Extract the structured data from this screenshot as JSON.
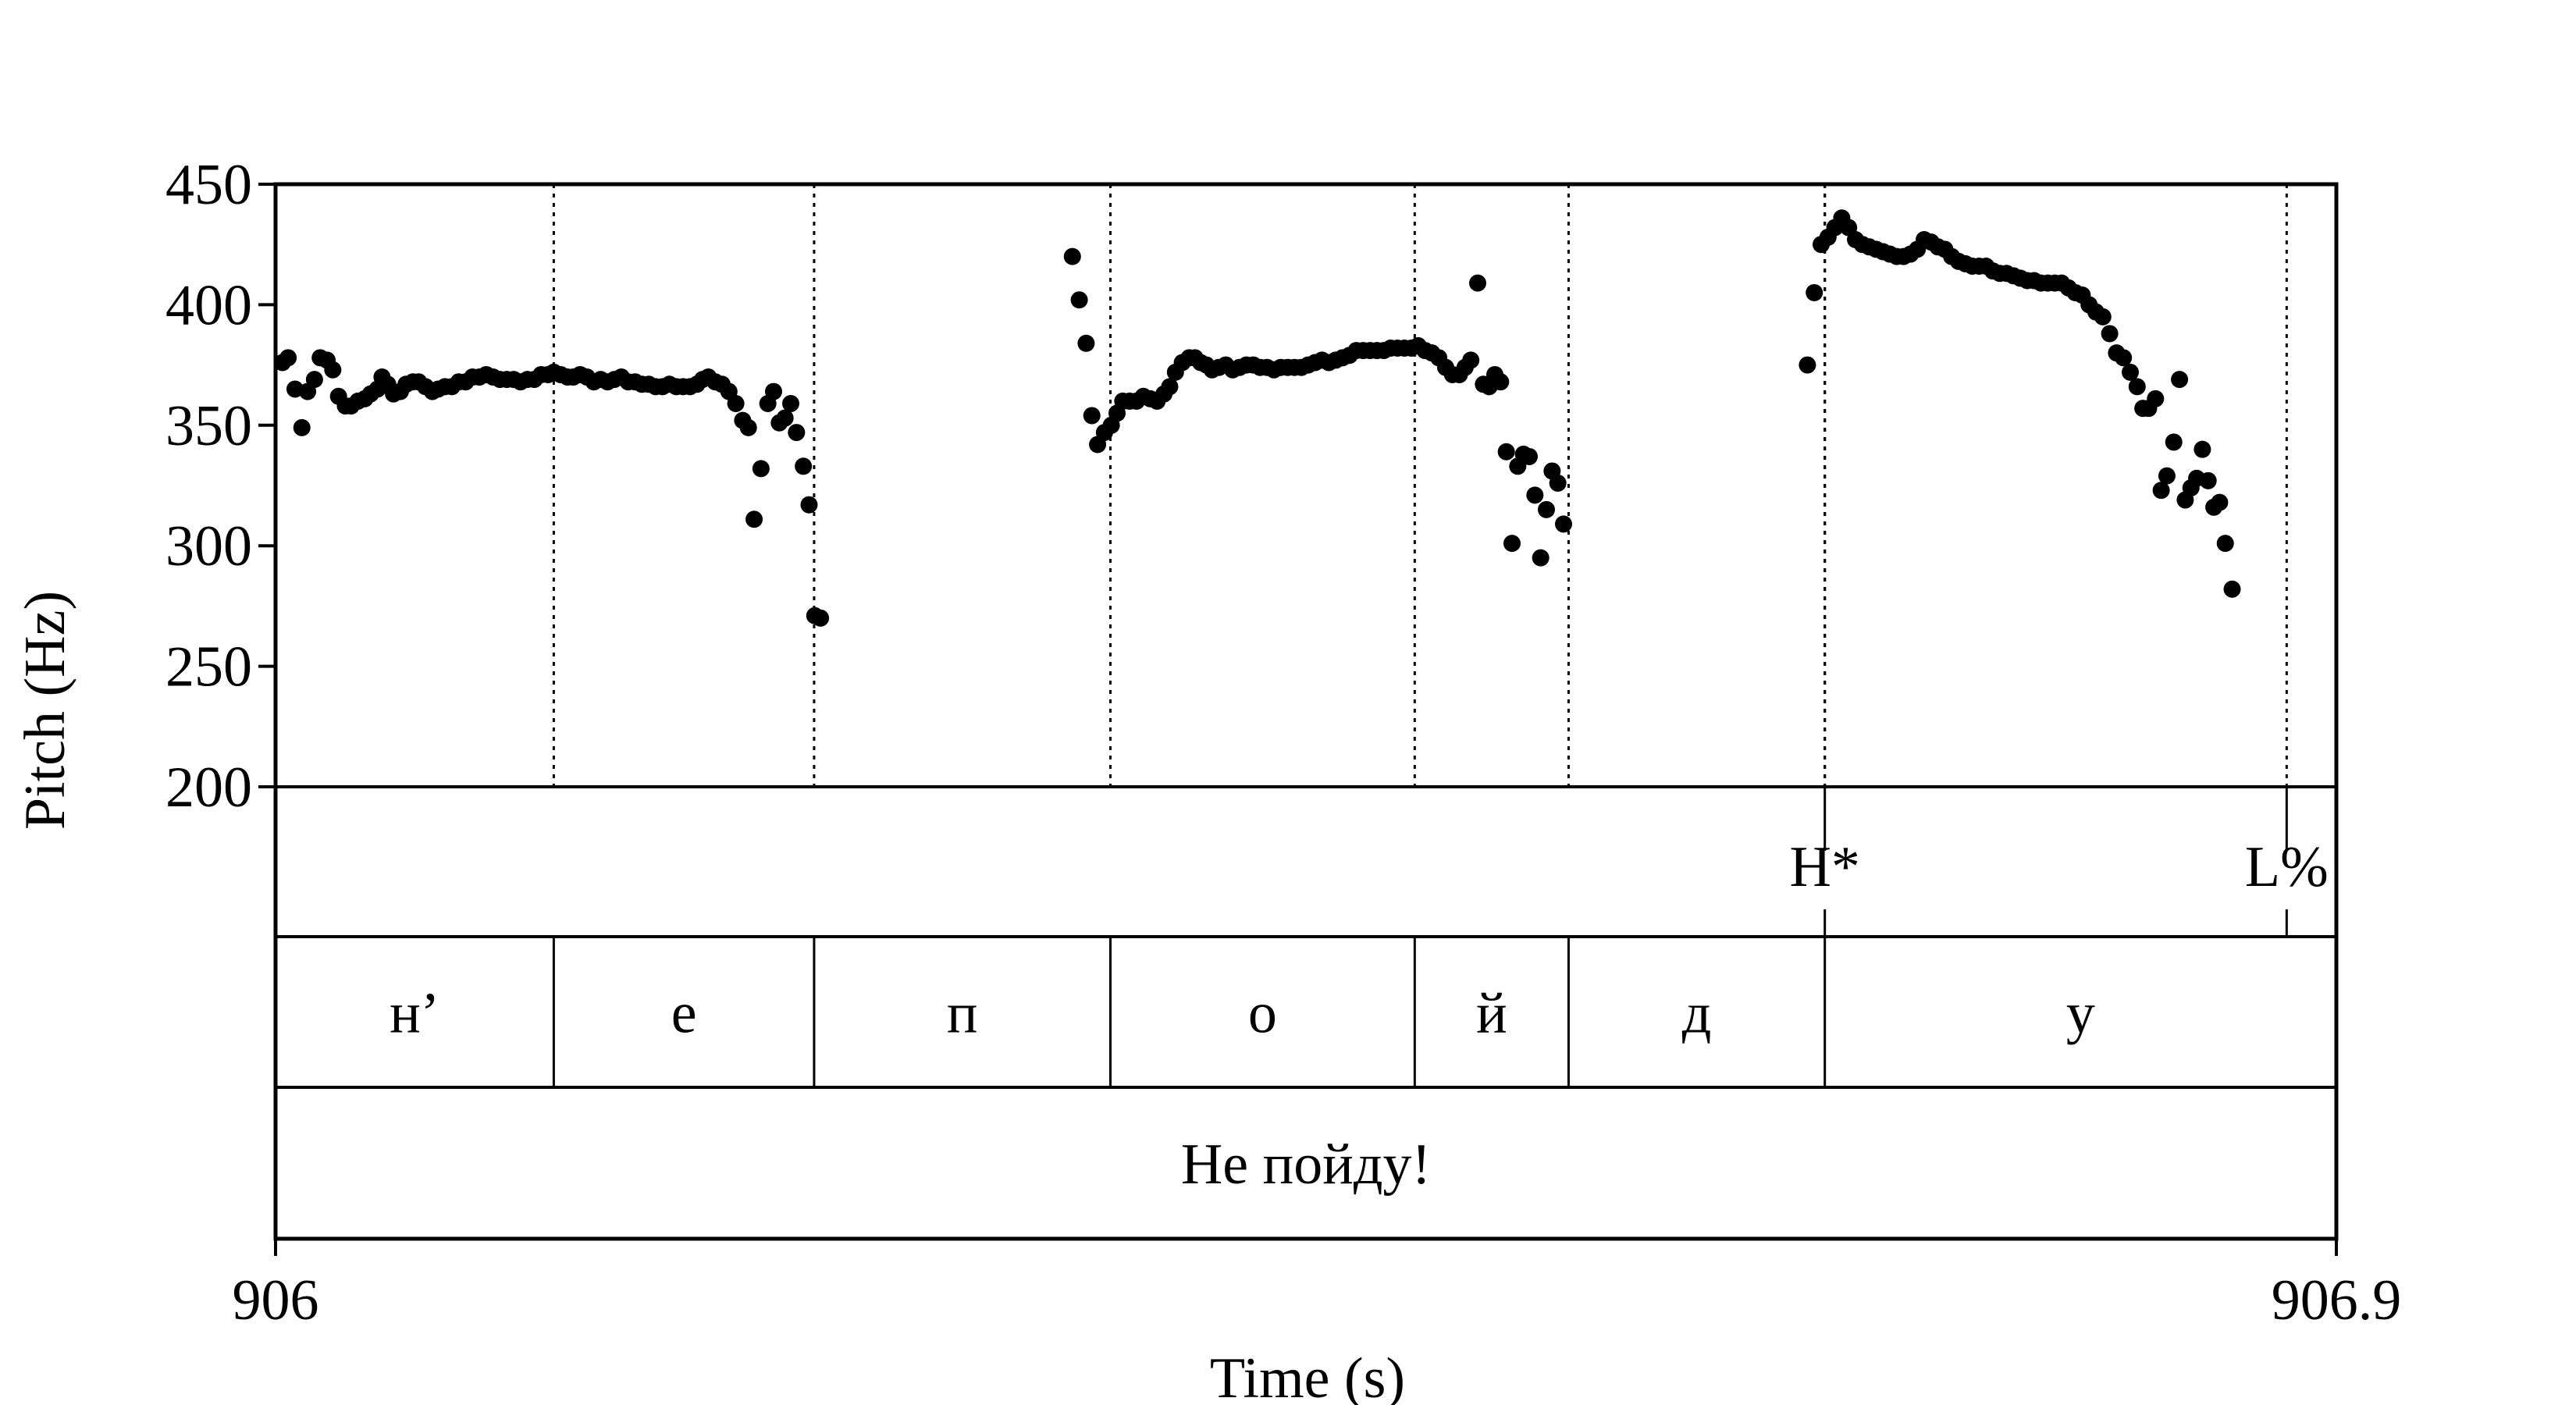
{
  "chart_data": {
    "type": "scatter",
    "xlabel": "Time (s)",
    "ylabel": "Pitch (Hz)",
    "xlim": [
      906,
      906.9
    ],
    "ylim": [
      200,
      450
    ],
    "x_tick_labels": [
      "906",
      "906.9"
    ],
    "y_ticks": [
      450,
      400,
      350,
      300,
      250,
      200
    ],
    "y_tick_labels": [
      "450",
      "400",
      "350",
      "300",
      "250",
      "200"
    ],
    "segment_boundaries": [
      906.1215,
      906.2352,
      906.3646,
      906.4975,
      906.5647,
      906.6766
    ],
    "tones": [
      {
        "time": 906.6766,
        "label": "H*"
      },
      {
        "time": 906.8783,
        "label": "L%"
      }
    ],
    "segments": [
      {
        "start": 906.0,
        "end": 906.1215,
        "label": "н’"
      },
      {
        "start": 906.1215,
        "end": 906.2352,
        "label": "е"
      },
      {
        "start": 906.2352,
        "end": 906.3646,
        "label": "п"
      },
      {
        "start": 906.3646,
        "end": 906.4975,
        "label": "о"
      },
      {
        "start": 906.4975,
        "end": 906.5647,
        "label": "й"
      },
      {
        "start": 906.5647,
        "end": 906.6766,
        "label": "д"
      },
      {
        "start": 906.6766,
        "end": 906.9,
        "label": "у"
      }
    ],
    "utterance": {
      "start": 906.0,
      "end": 906.9,
      "label": "Не пойду!"
    },
    "series": [
      {
        "points": [
          [
            906.003,
            376
          ],
          [
            906.0055,
            378
          ],
          [
            906.0085,
            365
          ],
          [
            906.0115,
            349
          ],
          [
            906.014,
            364
          ],
          [
            906.017,
            369
          ],
          [
            906.0195,
            378
          ],
          [
            906.0225,
            377
          ],
          [
            906.025,
            373
          ],
          [
            906.0275,
            362
          ],
          [
            906.0305,
            358
          ],
          [
            906.033,
            358
          ],
          [
            906.036,
            360
          ],
          [
            906.039,
            361
          ],
          [
            906.0415,
            363
          ],
          [
            906.0445,
            365
          ],
          [
            906.0465,
            370
          ],
          [
            906.049,
            367
          ],
          [
            906.0515,
            363
          ],
          [
            906.0545,
            364
          ],
          [
            906.057,
            367
          ],
          [
            906.06,
            368
          ],
          [
            906.0625,
            368
          ],
          [
            906.0655,
            366
          ],
          [
            906.0685,
            364
          ],
          [
            906.071,
            365
          ],
          [
            906.074,
            366
          ],
          [
            906.077,
            366
          ],
          [
            906.08,
            368
          ],
          [
            906.083,
            368
          ],
          [
            906.086,
            370
          ],
          [
            906.089,
            370
          ],
          [
            906.092,
            371
          ],
          [
            906.095,
            370
          ],
          [
            906.098,
            369
          ],
          [
            906.101,
            369
          ],
          [
            906.104,
            369
          ],
          [
            906.107,
            368
          ],
          [
            906.11,
            369
          ],
          [
            906.113,
            369
          ],
          [
            906.116,
            371
          ],
          [
            906.119,
            371
          ],
          [
            906.1215,
            372
          ],
          [
            906.1245,
            371
          ],
          [
            906.1275,
            370
          ],
          [
            906.13,
            370
          ],
          [
            906.133,
            371
          ],
          [
            906.136,
            370
          ],
          [
            906.139,
            368
          ],
          [
            906.142,
            369
          ],
          [
            906.145,
            368
          ],
          [
            906.148,
            369
          ],
          [
            906.151,
            370
          ],
          [
            906.154,
            368
          ],
          [
            906.157,
            368
          ],
          [
            906.16,
            367
          ],
          [
            906.163,
            367
          ],
          [
            906.166,
            366
          ],
          [
            906.169,
            366
          ],
          [
            906.172,
            367
          ],
          [
            906.175,
            366
          ],
          [
            906.178,
            366
          ],
          [
            906.181,
            366
          ],
          [
            906.184,
            367
          ],
          [
            906.1865,
            369
          ],
          [
            906.189,
            370
          ],
          [
            906.192,
            368
          ],
          [
            906.195,
            367
          ],
          [
            906.198,
            364
          ],
          [
            906.201,
            359
          ],
          [
            906.204,
            352
          ],
          [
            906.2065,
            349
          ],
          [
            906.209,
            311
          ],
          [
            906.212,
            332
          ],
          [
            906.215,
            359
          ],
          [
            906.2175,
            364
          ],
          [
            906.22,
            351
          ],
          [
            906.2225,
            353
          ],
          [
            906.225,
            359
          ],
          [
            906.2275,
            347
          ],
          [
            906.2305,
            333
          ],
          [
            906.233,
            317
          ],
          [
            906.2355,
            271
          ],
          [
            906.238,
            270
          ],
          [
            906.348,
            420
          ],
          [
            906.351,
            402
          ],
          [
            906.354,
            384
          ],
          [
            906.3565,
            354
          ],
          [
            906.359,
            342
          ],
          [
            906.362,
            347
          ],
          [
            906.365,
            350
          ],
          [
            906.3675,
            355
          ],
          [
            906.37,
            360
          ],
          [
            906.373,
            360
          ],
          [
            906.376,
            360
          ],
          [
            906.379,
            362
          ],
          [
            906.382,
            361
          ],
          [
            906.385,
            360
          ],
          [
            906.388,
            363
          ],
          [
            906.3905,
            366
          ],
          [
            906.393,
            372
          ],
          [
            906.396,
            376
          ],
          [
            906.399,
            378
          ],
          [
            906.4015,
            378
          ],
          [
            906.404,
            376
          ],
          [
            906.4065,
            375
          ],
          [
            906.409,
            373
          ],
          [
            906.412,
            374
          ],
          [
            906.415,
            375
          ],
          [
            906.418,
            373
          ],
          [
            906.421,
            374
          ],
          [
            906.424,
            375
          ],
          [
            906.427,
            375
          ],
          [
            906.43,
            374
          ],
          [
            906.433,
            374
          ],
          [
            906.436,
            373
          ],
          [
            906.439,
            374
          ],
          [
            906.442,
            374
          ],
          [
            906.445,
            374
          ],
          [
            906.448,
            374
          ],
          [
            906.451,
            375
          ],
          [
            906.454,
            376
          ],
          [
            906.457,
            377
          ],
          [
            906.46,
            376
          ],
          [
            906.463,
            377
          ],
          [
            906.466,
            378
          ],
          [
            906.469,
            379
          ],
          [
            906.472,
            381
          ],
          [
            906.475,
            381
          ],
          [
            906.478,
            381
          ],
          [
            906.481,
            381
          ],
          [
            906.484,
            381
          ],
          [
            906.487,
            382
          ],
          [
            906.49,
            382
          ],
          [
            906.493,
            382
          ],
          [
            906.496,
            382
          ],
          [
            906.499,
            383
          ],
          [
            906.502,
            381
          ],
          [
            906.505,
            380
          ],
          [
            906.508,
            378
          ],
          [
            906.511,
            374
          ],
          [
            906.514,
            371
          ],
          [
            906.517,
            371
          ],
          [
            906.5195,
            374
          ],
          [
            906.522,
            377
          ],
          [
            906.525,
            409
          ],
          [
            906.5275,
            367
          ],
          [
            906.53,
            366
          ],
          [
            906.5325,
            371
          ],
          [
            906.535,
            368
          ],
          [
            906.5375,
            339
          ],
          [
            906.54,
            301
          ],
          [
            906.5425,
            333
          ],
          [
            906.545,
            338
          ],
          [
            906.5475,
            337
          ],
          [
            906.55,
            321
          ],
          [
            906.5525,
            295
          ],
          [
            906.555,
            315
          ],
          [
            906.5575,
            331
          ],
          [
            906.56,
            326
          ],
          [
            906.5625,
            309
          ],
          [
            906.669,
            375
          ],
          [
            906.672,
            405
          ],
          [
            906.675,
            425
          ],
          [
            906.678,
            428
          ],
          [
            906.681,
            432
          ],
          [
            906.684,
            436
          ],
          [
            906.687,
            432
          ],
          [
            906.69,
            427
          ],
          [
            906.693,
            425
          ],
          [
            906.696,
            424
          ],
          [
            906.699,
            423
          ],
          [
            906.702,
            422
          ],
          [
            906.705,
            421
          ],
          [
            906.708,
            420
          ],
          [
            906.711,
            420
          ],
          [
            906.714,
            421
          ],
          [
            906.717,
            423
          ],
          [
            906.72,
            427
          ],
          [
            906.723,
            426
          ],
          [
            906.726,
            424
          ],
          [
            906.729,
            423
          ],
          [
            906.732,
            420
          ],
          [
            906.735,
            418
          ],
          [
            906.738,
            417
          ],
          [
            906.741,
            416
          ],
          [
            906.744,
            416
          ],
          [
            906.747,
            416
          ],
          [
            906.75,
            414
          ],
          [
            906.753,
            413
          ],
          [
            906.756,
            413
          ],
          [
            906.759,
            412
          ],
          [
            906.762,
            411
          ],
          [
            906.765,
            410
          ],
          [
            906.768,
            410
          ],
          [
            906.771,
            409
          ],
          [
            906.774,
            409
          ],
          [
            906.777,
            409
          ],
          [
            906.78,
            409
          ],
          [
            906.783,
            407
          ],
          [
            906.786,
            405
          ],
          [
            906.789,
            404
          ],
          [
            906.792,
            400
          ],
          [
            906.795,
            397
          ],
          [
            906.798,
            395
          ],
          [
            906.801,
            388
          ],
          [
            906.804,
            380
          ],
          [
            906.807,
            378
          ],
          [
            906.81,
            372
          ],
          [
            906.813,
            366
          ],
          [
            906.8155,
            357
          ],
          [
            906.818,
            357
          ],
          [
            906.821,
            361
          ],
          [
            906.8235,
            323
          ],
          [
            906.826,
            329
          ],
          [
            906.829,
            343
          ],
          [
            906.8315,
            369
          ],
          [
            906.834,
            319
          ],
          [
            906.8365,
            324
          ],
          [
            906.839,
            328
          ],
          [
            906.8415,
            340
          ],
          [
            906.844,
            327
          ],
          [
            906.8465,
            316
          ],
          [
            906.849,
            318
          ],
          [
            906.8515,
            301
          ],
          [
            906.8545,
            282
          ]
        ]
      }
    ]
  }
}
